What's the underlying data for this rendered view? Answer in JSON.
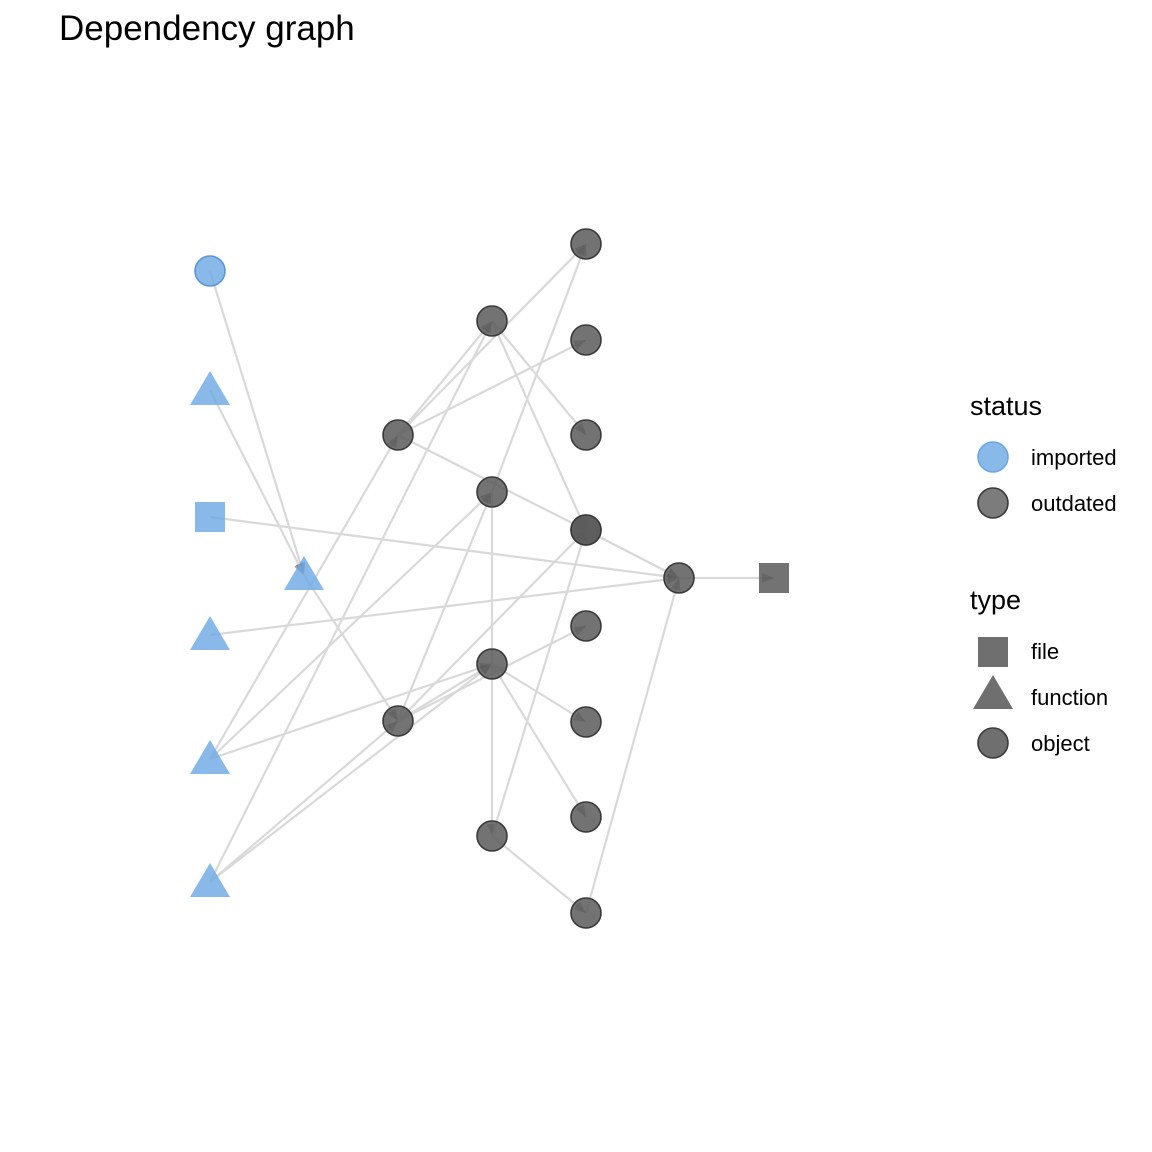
{
  "title": "Dependency graph",
  "colors": {
    "imported": "#6ca7e4",
    "outdated": "#5b5b5b",
    "edge": "#d9d9d9",
    "arrow": "#5e5e5e"
  },
  "nodes": [
    {
      "id": "n1",
      "type": "object",
      "status": "imported"
    },
    {
      "id": "n2",
      "type": "function",
      "status": "imported"
    },
    {
      "id": "n3",
      "type": "file",
      "status": "imported"
    },
    {
      "id": "n4",
      "type": "function",
      "status": "imported"
    },
    {
      "id": "n5",
      "type": "function",
      "status": "imported"
    },
    {
      "id": "n6",
      "type": "function",
      "status": "imported"
    },
    {
      "id": "n7",
      "type": "function",
      "status": "imported"
    },
    {
      "id": "n8",
      "type": "object",
      "status": "outdated"
    },
    {
      "id": "n9",
      "type": "object",
      "status": "outdated"
    },
    {
      "id": "n10",
      "type": "object",
      "status": "outdated"
    },
    {
      "id": "n11",
      "type": "object",
      "status": "outdated"
    },
    {
      "id": "n12",
      "type": "object",
      "status": "outdated"
    },
    {
      "id": "n13",
      "type": "object",
      "status": "outdated"
    },
    {
      "id": "n14",
      "type": "object",
      "status": "outdated"
    },
    {
      "id": "n15",
      "type": "object",
      "status": "outdated"
    },
    {
      "id": "n16",
      "type": "object",
      "status": "outdated"
    },
    {
      "id": "n17",
      "type": "object",
      "status": "outdated"
    },
    {
      "id": "n18",
      "type": "object",
      "status": "outdated"
    },
    {
      "id": "n19",
      "type": "object",
      "status": "outdated"
    },
    {
      "id": "n20",
      "type": "object",
      "status": "outdated"
    },
    {
      "id": "n21",
      "type": "object",
      "status": "outdated"
    },
    {
      "id": "n22",
      "type": "object",
      "status": "outdated"
    },
    {
      "id": "n23",
      "type": "object",
      "status": "outdated"
    },
    {
      "id": "n24",
      "type": "file",
      "status": "outdated"
    }
  ],
  "edges": [
    [
      "n1",
      "n7"
    ],
    [
      "n2",
      "n7"
    ],
    [
      "n3",
      "n23"
    ],
    [
      "n4",
      "n23"
    ],
    [
      "n5",
      "n12"
    ],
    [
      "n5",
      "n8"
    ],
    [
      "n5",
      "n11"
    ],
    [
      "n6",
      "n10"
    ],
    [
      "n6",
      "n9"
    ],
    [
      "n6",
      "n12"
    ],
    [
      "n7",
      "n9"
    ],
    [
      "n8",
      "n14"
    ],
    [
      "n8",
      "n15"
    ],
    [
      "n8",
      "n10"
    ],
    [
      "n8",
      "n17"
    ],
    [
      "n9",
      "n11"
    ],
    [
      "n9",
      "n19"
    ],
    [
      "n9",
      "n18"
    ],
    [
      "n9",
      "n12"
    ],
    [
      "n10",
      "n16"
    ],
    [
      "n10",
      "n17"
    ],
    [
      "n11",
      "n13"
    ],
    [
      "n11",
      "n14"
    ],
    [
      "n12",
      "n20"
    ],
    [
      "n12",
      "n21"
    ],
    [
      "n13",
      "n22"
    ],
    [
      "n13",
      "n18"
    ],
    [
      "n17",
      "n23"
    ],
    [
      "n18",
      "n23"
    ],
    [
      "n22",
      "n23"
    ],
    [
      "n23",
      "n24"
    ]
  ],
  "legend": {
    "status": {
      "title": "status",
      "items": [
        {
          "label": "imported",
          "shape": "object",
          "color": "#6ca7e4"
        },
        {
          "label": "outdated",
          "shape": "object",
          "color": "#5b5b5b"
        }
      ]
    },
    "type": {
      "title": "type",
      "items": [
        {
          "label": "file",
          "shape": "file",
          "color": "#6f6f6f"
        },
        {
          "label": "function",
          "shape": "function",
          "color": "#6f6f6f"
        },
        {
          "label": "object",
          "shape": "object",
          "color": "#6f6f6f"
        }
      ]
    }
  }
}
